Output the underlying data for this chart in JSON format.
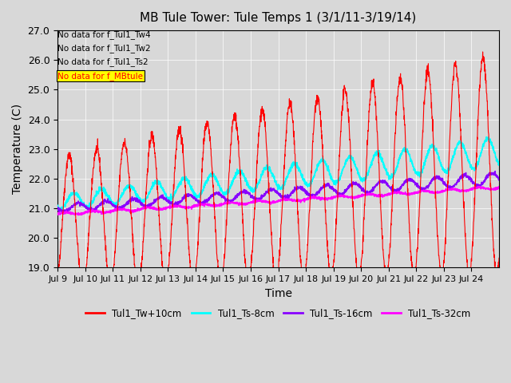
{
  "title": "MB Tule Tower: Tule Temps 1 (3/1/11-3/19/14)",
  "xlabel": "Time",
  "ylabel": "Temperature (C)",
  "ylim": [
    19.0,
    27.0
  ],
  "yticks": [
    19.0,
    20.0,
    21.0,
    22.0,
    23.0,
    24.0,
    25.0,
    26.0,
    27.0
  ],
  "xtick_labels": [
    "Jul 9",
    "Jul 10",
    "Jul 11",
    "Jul 12",
    "Jul 13",
    "Jul 14",
    "Jul 15",
    "Jul 16",
    "Jul 17",
    "Jul 18",
    "Jul 19",
    "Jul 20",
    "Jul 21",
    "Jul 22",
    "Jul 23",
    "Jul 24"
  ],
  "n_days": 16,
  "colors": {
    "Tw": "#ff0000",
    "Ts8": "#00ffff",
    "Ts16": "#8800ff",
    "Ts32": "#ff00ff"
  },
  "no_data_texts": [
    "No data for f_Tul1_Tw4",
    "No data for f_Tul1_Tw2",
    "No data for f_Tul1_Ts2",
    "No data for f_MBtule"
  ],
  "legend_labels": [
    "Tul1_Tw+10cm",
    "Tul1_Ts-8cm",
    "Tul1_Ts-16cm",
    "Tul1_Ts-32cm"
  ],
  "bg_color": "#d8d8d8",
  "plot_bg_color": "#d8d8d8"
}
